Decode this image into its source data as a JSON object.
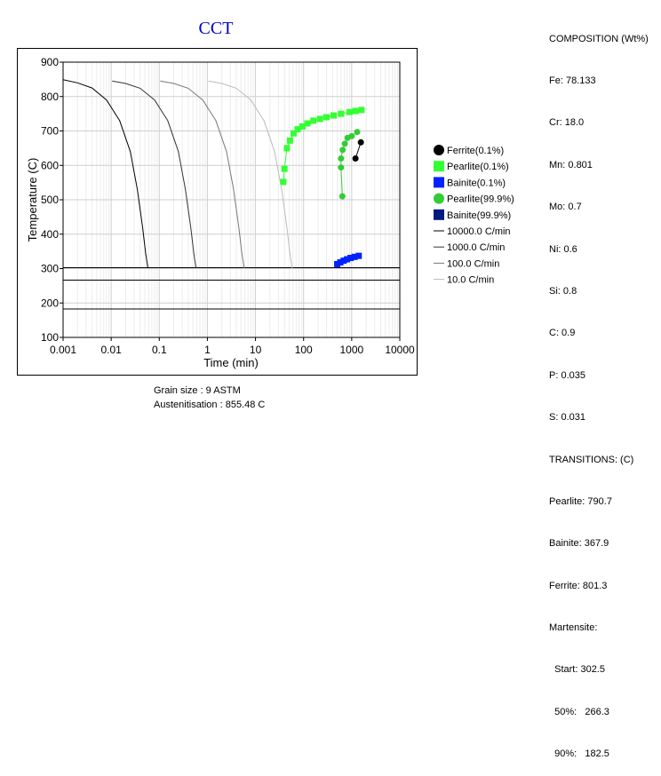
{
  "chart_data": {
    "type": "scatter",
    "title": "CCT",
    "xlabel": "Time (min)",
    "ylabel": "Temperature (C)",
    "xscale": "log",
    "xlim": [
      0.001,
      10000
    ],
    "ylim": [
      100,
      900
    ],
    "x_ticks": [
      "0.001",
      "0.01",
      "0.1",
      "1",
      "10",
      "100",
      "1000",
      "10000"
    ],
    "y_ticks": [
      "100",
      "200",
      "300",
      "400",
      "500",
      "600",
      "700",
      "800",
      "900"
    ],
    "grid": true,
    "legend_position": "right",
    "martensite_lines": [
      302.5,
      266.3,
      182.5
    ],
    "series": [
      {
        "name": "Ferrite(0.1%)",
        "marker": "circle",
        "color": "#000000",
        "x": [
          1200,
          1550
        ],
        "y": [
          620,
          667
        ]
      },
      {
        "name": "Pearlite(0.1%)",
        "marker": "square",
        "color": "#33ff33",
        "x": [
          38,
          40,
          45,
          52,
          62,
          75,
          95,
          120,
          160,
          220,
          300,
          420,
          600,
          900,
          1200,
          1600
        ],
        "y": [
          552,
          590,
          650,
          672,
          693,
          705,
          713,
          722,
          730,
          735,
          740,
          745,
          750,
          755,
          758,
          761
        ]
      },
      {
        "name": "Bainite(0.1%)",
        "marker": "square",
        "color": "#0022ff",
        "x": [
          500,
          580,
          680,
          800,
          950,
          1150,
          1400
        ],
        "y": [
          313,
          318,
          323,
          327,
          331,
          334,
          337
        ]
      },
      {
        "name": "Pearlite(99.9%)",
        "marker": "circle",
        "color": "#33cc33",
        "x": [
          640,
          600,
          600,
          650,
          720,
          820,
          1000,
          1300
        ],
        "y": [
          510,
          594,
          620,
          645,
          663,
          680,
          685,
          697
        ]
      },
      {
        "name": "Bainite(99.9%)",
        "marker": "square",
        "color": "#001a80",
        "x": [],
        "y": []
      }
    ],
    "cooling_curves": [
      {
        "name": "10000.0 C/min",
        "color": "#000000",
        "x": [
          0.001,
          0.002,
          0.004,
          0.008,
          0.015,
          0.025,
          0.035,
          0.045,
          0.052,
          0.058
        ],
        "y": [
          849,
          840,
          825,
          790,
          730,
          640,
          530,
          420,
          345,
          301
        ]
      },
      {
        "name": "1000.0 C/min",
        "color": "#333333",
        "x": [
          0.0105,
          0.02,
          0.04,
          0.08,
          0.15,
          0.25,
          0.35,
          0.45,
          0.52,
          0.58
        ],
        "y": [
          845,
          838,
          824,
          790,
          730,
          640,
          530,
          420,
          345,
          301
        ]
      },
      {
        "name": "100.0 C/min",
        "color": "#777777",
        "x": [
          0.105,
          0.2,
          0.4,
          0.8,
          1.5,
          2.5,
          3.5,
          4.5,
          5.2,
          5.8
        ],
        "y": [
          845,
          838,
          824,
          790,
          730,
          640,
          530,
          420,
          345,
          301
        ]
      },
      {
        "name": "10.0 C/min",
        "color": "#bbbbbb",
        "x": [
          1.05,
          2,
          4,
          8,
          15,
          25,
          35,
          45,
          52,
          58
        ],
        "y": [
          845,
          838,
          824,
          790,
          730,
          640,
          530,
          420,
          345,
          301
        ]
      }
    ]
  },
  "composition": {
    "header": "COMPOSITION (Wt%)",
    "lines": [
      "Fe: 78.133",
      "Cr: 18.0",
      "Mn: 0.801",
      "Mo: 0.7",
      "Ni: 0.6",
      "Si: 0.8",
      "C: 0.9",
      "P: 0.035",
      "S: 0.031"
    ]
  },
  "transitions": {
    "header": "TRANSITIONS: (C)",
    "lines": [
      "Pearlite: 790.7",
      "Bainite: 367.9",
      "Ferrite: 801.3",
      "Martensite:",
      "  Start: 302.5",
      "  50%:   266.3",
      "  90%:   182.5"
    ]
  },
  "footer": {
    "grain_size": "Grain size : 9 ASTM",
    "austenitisation": "Austenitisation : 855.48 C"
  }
}
